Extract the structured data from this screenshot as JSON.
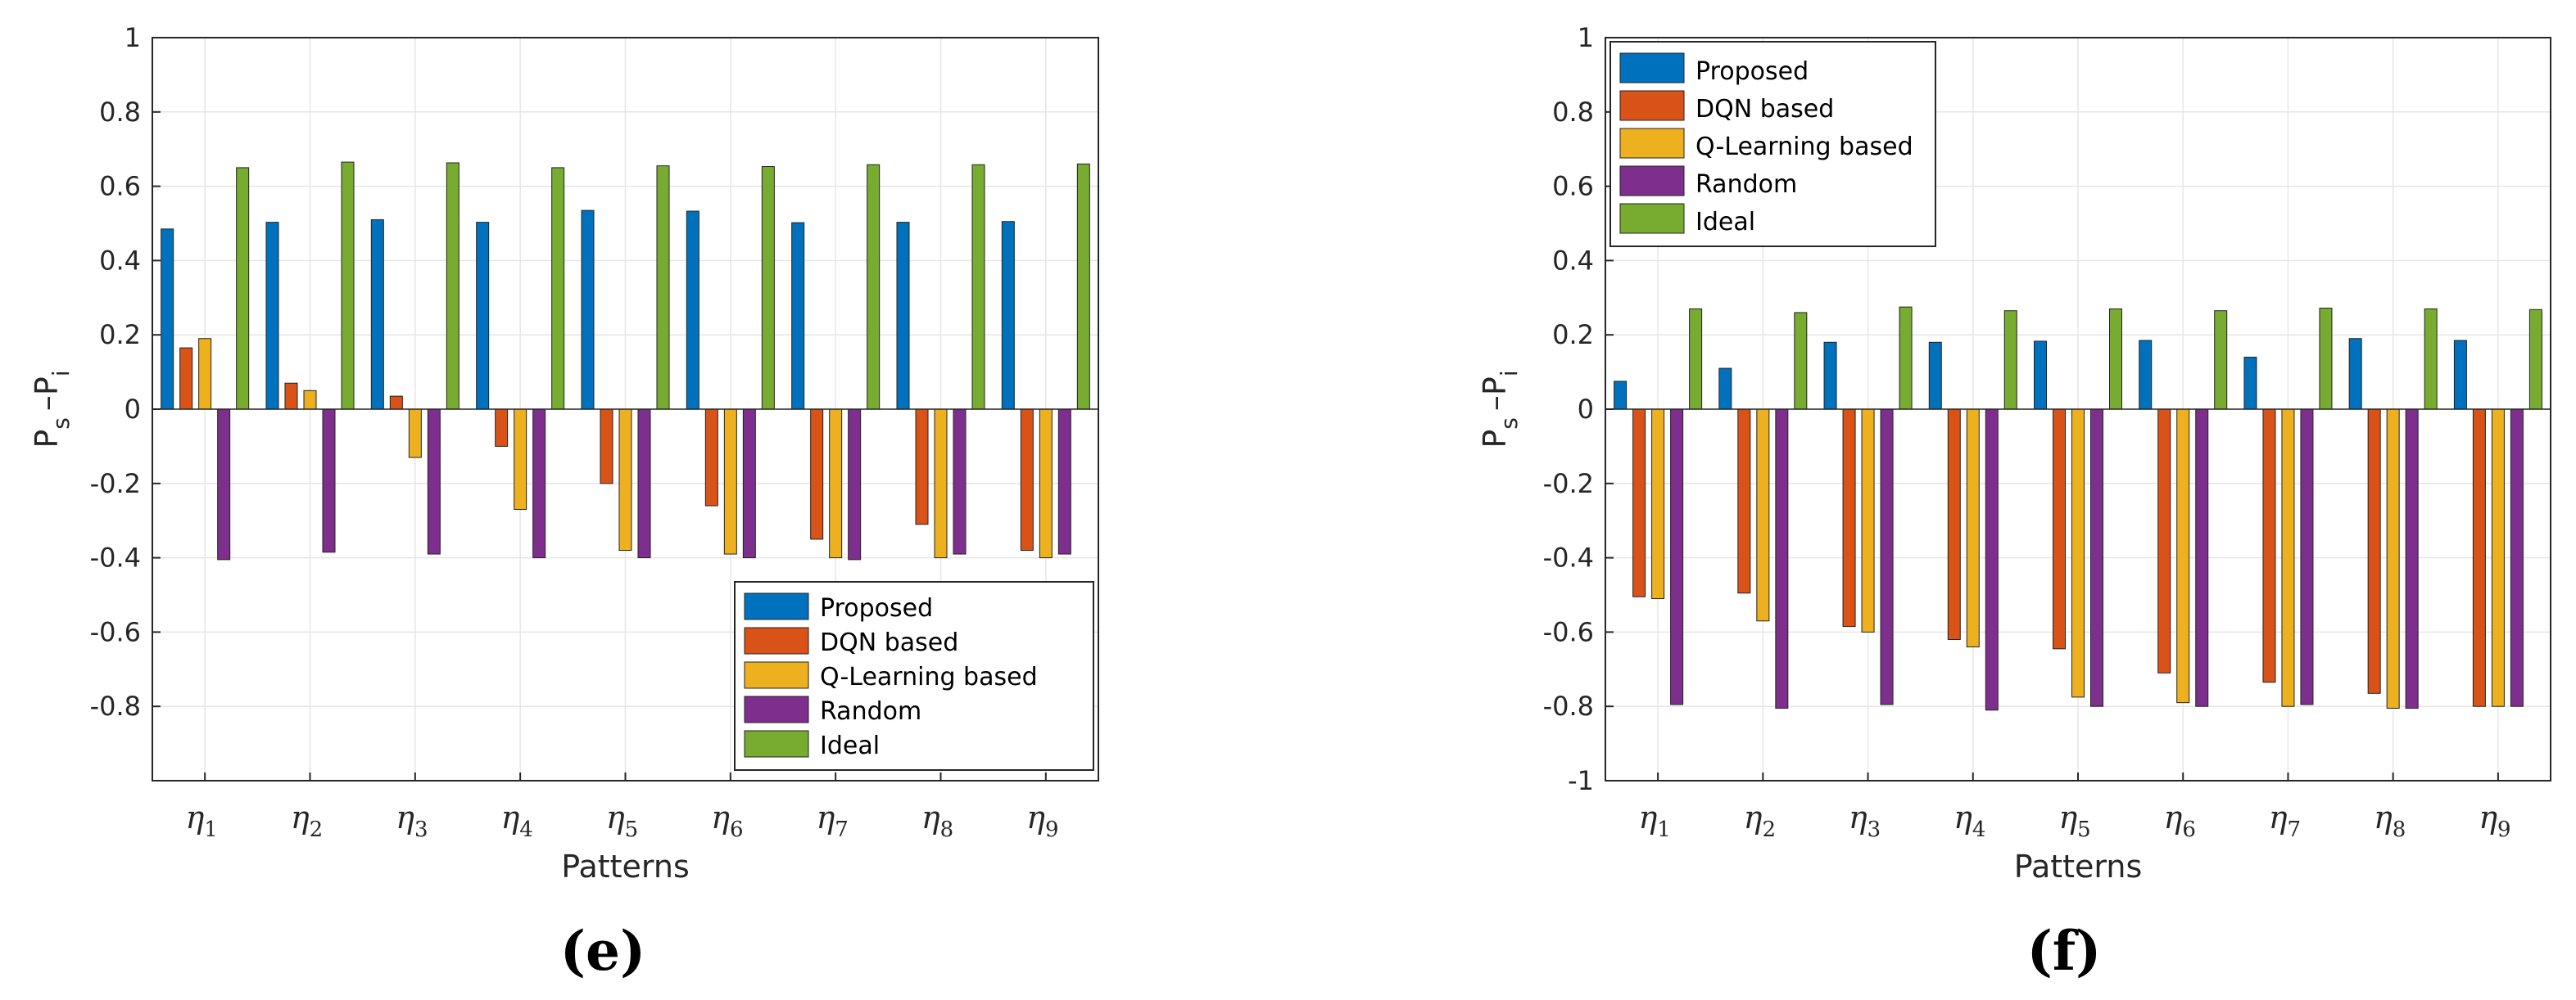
{
  "colors": {
    "Proposed": "#0072BD",
    "DQN based": "#D95319",
    "Q-Learning based": "#EDB120",
    "Random": "#7E2F8E",
    "Ideal": "#77AC30"
  },
  "chart_data": [
    {
      "type": "bar",
      "panel_label": "(e)",
      "xlabel": "Patterns",
      "ylabel": "P_s – P_i",
      "ylabel_main": [
        "P",
        "–P"
      ],
      "ylabel_subs": [
        "s",
        "i"
      ],
      "ylim": [
        -1.0,
        1.0
      ],
      "yticks": [
        "1",
        "0.8",
        "0.6",
        "0.4",
        "0.2",
        "0",
        "-0.2",
        "-0.4",
        "-0.6",
        "-0.8"
      ],
      "legend_position": "bottom-right",
      "categories": [
        "η1",
        "η2",
        "η3",
        "η4",
        "η5",
        "η6",
        "η7",
        "η8",
        "η9"
      ],
      "category_symbol": "η",
      "category_subs": [
        "1",
        "2",
        "3",
        "4",
        "5",
        "6",
        "7",
        "8",
        "9"
      ],
      "series": [
        {
          "name": "Proposed",
          "values": [
            0.485,
            0.503,
            0.51,
            0.503,
            0.535,
            0.533,
            0.502,
            0.503,
            0.505
          ]
        },
        {
          "name": "DQN based",
          "values": [
            0.165,
            0.07,
            0.035,
            -0.1,
            -0.2,
            -0.26,
            -0.35,
            -0.31,
            -0.38
          ]
        },
        {
          "name": "Q-Learning based",
          "values": [
            0.19,
            0.05,
            -0.13,
            -0.27,
            -0.38,
            -0.39,
            -0.4,
            -0.4,
            -0.4
          ]
        },
        {
          "name": "Random",
          "values": [
            -0.405,
            -0.385,
            -0.39,
            -0.4,
            -0.4,
            -0.4,
            -0.405,
            -0.39,
            -0.39
          ]
        },
        {
          "name": "Ideal",
          "values": [
            0.65,
            0.665,
            0.663,
            0.65,
            0.655,
            0.653,
            0.658,
            0.658,
            0.66
          ]
        }
      ]
    },
    {
      "type": "bar",
      "panel_label": "(f)",
      "xlabel": "Patterns",
      "ylabel": "P_s – P_i",
      "ylabel_main": [
        "P",
        "–P"
      ],
      "ylabel_subs": [
        "s",
        "i"
      ],
      "ylim": [
        -1.0,
        1.0
      ],
      "yticks": [
        "1",
        "0.8",
        "0.6",
        "0.4",
        "0.2",
        "0",
        "-0.2",
        "-0.4",
        "-0.6",
        "-0.8",
        "-1"
      ],
      "legend_position": "top-left",
      "categories": [
        "η1",
        "η2",
        "η3",
        "η4",
        "η5",
        "η6",
        "η7",
        "η8",
        "η9"
      ],
      "category_symbol": "η",
      "category_subs": [
        "1",
        "2",
        "3",
        "4",
        "5",
        "6",
        "7",
        "8",
        "9"
      ],
      "series": [
        {
          "name": "Proposed",
          "values": [
            0.075,
            0.11,
            0.18,
            0.18,
            0.183,
            0.185,
            0.14,
            0.19,
            0.185
          ]
        },
        {
          "name": "DQN based",
          "values": [
            -0.505,
            -0.495,
            -0.585,
            -0.62,
            -0.645,
            -0.71,
            -0.735,
            -0.765,
            -0.8
          ]
        },
        {
          "name": "Q-Learning based",
          "values": [
            -0.51,
            -0.57,
            -0.6,
            -0.64,
            -0.775,
            -0.79,
            -0.8,
            -0.805,
            -0.8
          ]
        },
        {
          "name": "Random",
          "values": [
            -0.795,
            -0.805,
            -0.795,
            -0.81,
            -0.8,
            -0.8,
            -0.795,
            -0.805,
            -0.8
          ]
        },
        {
          "name": "Ideal",
          "values": [
            0.27,
            0.26,
            0.275,
            0.265,
            0.27,
            0.265,
            0.272,
            0.27,
            0.268
          ]
        }
      ]
    }
  ]
}
